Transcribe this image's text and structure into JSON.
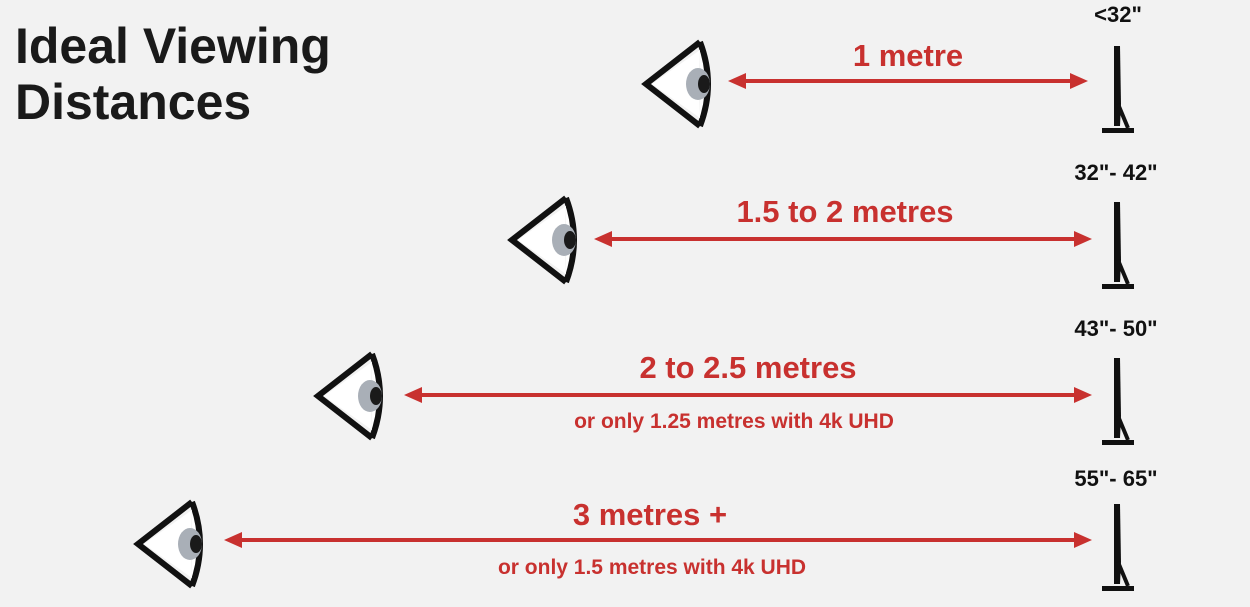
{
  "title": {
    "line1": "Ideal Viewing",
    "line2": "Distances"
  },
  "colors": {
    "accent": "#c8312f",
    "ink": "#111111",
    "background": "#f2f2f2"
  },
  "rows": [
    {
      "size": "<32\"",
      "distance": "1 metre",
      "note": "",
      "eye_icon": "eye-icon",
      "tv_icon": "tv-side-icon"
    },
    {
      "size": "32\"- 42\"",
      "distance": "1.5 to 2 metres",
      "note": "",
      "eye_icon": "eye-icon",
      "tv_icon": "tv-side-icon"
    },
    {
      "size": "43\"- 50\"",
      "distance": "2 to 2.5 metres",
      "note": "or only 1.25 metres with 4k UHD",
      "eye_icon": "eye-icon",
      "tv_icon": "tv-side-icon"
    },
    {
      "size": "55\"- 65\"",
      "distance": "3 metres +",
      "note": "or only 1.5 metres with 4k UHD",
      "eye_icon": "eye-icon",
      "tv_icon": "tv-side-icon"
    }
  ]
}
